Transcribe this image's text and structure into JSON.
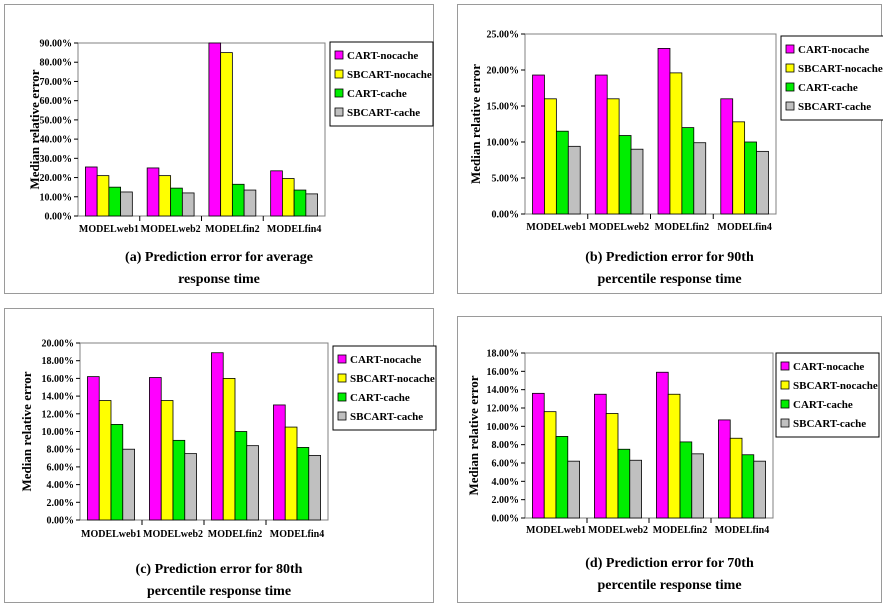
{
  "colors": {
    "CART-nocache": "#ff00ff",
    "SBCART-nocache": "#ffff00",
    "CART-cache": "#00ee00",
    "SBCART-cache": "#c0c0c0"
  },
  "chart_data": [
    {
      "type": "bar",
      "caption_lines": [
        "(a) Prediction error for average",
        "response time"
      ],
      "ylabel": "Median relative error",
      "ylim": [
        0,
        90
      ],
      "yticks": [
        "0.00%",
        "10.00%",
        "20.00%",
        "30.00%",
        "40.00%",
        "50.00%",
        "60.00%",
        "70.00%",
        "80.00%",
        "90.00%"
      ],
      "categories": [
        "MODELweb1",
        "MODELweb2",
        "MODELfin2",
        "MODELfin4"
      ],
      "series": [
        {
          "name": "CART-nocache",
          "values": [
            25.5,
            25.0,
            91.0,
            23.5
          ]
        },
        {
          "name": "SBCART-nocache",
          "values": [
            21.0,
            21.0,
            85.0,
            19.5
          ]
        },
        {
          "name": "CART-cache",
          "values": [
            15.0,
            14.5,
            16.5,
            13.5
          ]
        },
        {
          "name": "SBCART-cache",
          "values": [
            12.5,
            12.0,
            13.5,
            11.5
          ]
        }
      ]
    },
    {
      "type": "bar",
      "caption_lines": [
        "(b) Prediction error for 90th",
        "percentile response time"
      ],
      "ylabel": "Median relative error",
      "ylim": [
        0,
        25
      ],
      "yticks": [
        "0.00%",
        "5.00%",
        "10.00%",
        "15.00%",
        "20.00%",
        "25.00%"
      ],
      "categories": [
        "MODELweb1",
        "MODELweb2",
        "MODELfin2",
        "MODELfin4"
      ],
      "series": [
        {
          "name": "CART-nocache",
          "values": [
            19.3,
            19.3,
            23.0,
            16.0
          ]
        },
        {
          "name": "SBCART-nocache",
          "values": [
            16.0,
            16.0,
            19.6,
            12.8
          ]
        },
        {
          "name": "CART-cache",
          "values": [
            11.5,
            10.9,
            12.0,
            10.0
          ]
        },
        {
          "name": "SBCART-cache",
          "values": [
            9.4,
            9.0,
            9.9,
            8.7
          ]
        }
      ]
    },
    {
      "type": "bar",
      "caption_lines": [
        "(c) Prediction error for 80th",
        "percentile response time"
      ],
      "ylabel": "Median relative error",
      "ylim": [
        0,
        20
      ],
      "yticks": [
        "0.00%",
        "2.00%",
        "4.00%",
        "6.00%",
        "8.00%",
        "10.00%",
        "12.00%",
        "14.00%",
        "16.00%",
        "18.00%",
        "20.00%"
      ],
      "categories": [
        "MODELweb1",
        "MODELweb2",
        "MODELfin2",
        "MODELfin4"
      ],
      "series": [
        {
          "name": "CART-nocache",
          "values": [
            16.2,
            16.1,
            18.9,
            13.0
          ]
        },
        {
          "name": "SBCART-nocache",
          "values": [
            13.5,
            13.5,
            16.0,
            10.5
          ]
        },
        {
          "name": "CART-cache",
          "values": [
            10.8,
            9.0,
            10.0,
            8.2
          ]
        },
        {
          "name": "SBCART-cache",
          "values": [
            8.0,
            7.5,
            8.4,
            7.3
          ]
        }
      ]
    },
    {
      "type": "bar",
      "caption_lines": [
        "(d) Prediction error for 70th",
        "percentile response time"
      ],
      "ylabel": "Median relative error",
      "ylim": [
        0,
        18
      ],
      "yticks": [
        "0.00%",
        "2.00%",
        "4.00%",
        "6.00%",
        "8.00%",
        "10.00%",
        "12.00%",
        "14.00%",
        "16.00%",
        "18.00%"
      ],
      "categories": [
        "MODELweb1",
        "MODELweb2",
        "MODELfin2",
        "MODELfin4"
      ],
      "series": [
        {
          "name": "CART-nocache",
          "values": [
            13.6,
            13.5,
            15.9,
            10.7
          ]
        },
        {
          "name": "SBCART-nocache",
          "values": [
            11.6,
            11.4,
            13.5,
            8.7
          ]
        },
        {
          "name": "CART-cache",
          "values": [
            8.9,
            7.5,
            8.3,
            6.9
          ]
        },
        {
          "name": "SBCART-cache",
          "values": [
            6.2,
            6.3,
            7.0,
            6.2
          ]
        }
      ]
    }
  ]
}
